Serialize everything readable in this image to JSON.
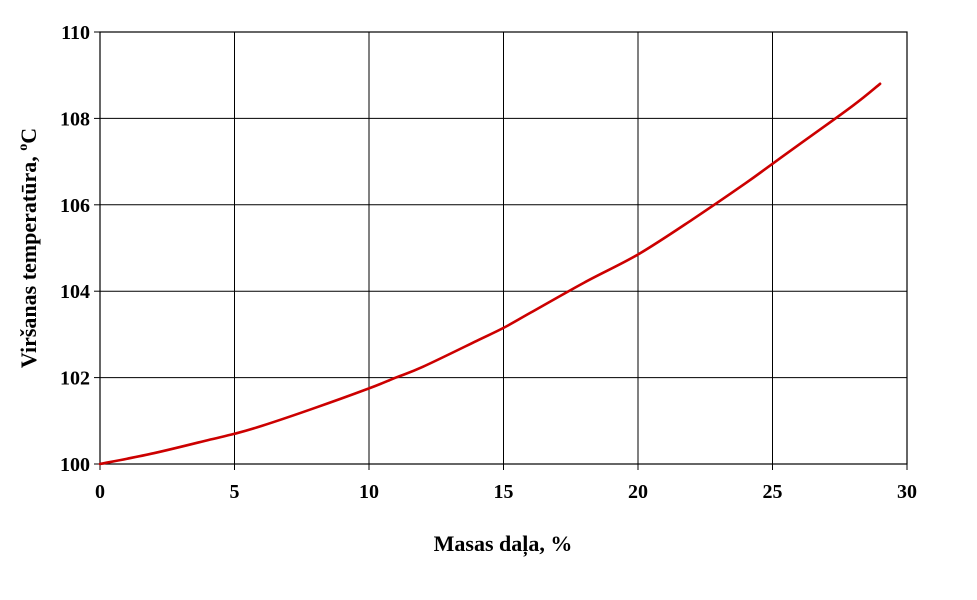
{
  "chart_data": {
    "type": "line",
    "title": "",
    "xlabel": "Masas daļa, %",
    "ylabel_main": "Viršanas temperatūra, ",
    "ylabel_sup": "o",
    "ylabel_unit": "C",
    "xlim": [
      0,
      30
    ],
    "ylim": [
      100,
      110
    ],
    "x_ticks": [
      0,
      5,
      10,
      15,
      20,
      25,
      30
    ],
    "y_ticks": [
      100,
      102,
      104,
      106,
      108,
      110
    ],
    "grid": true,
    "legend": "none",
    "series": [
      {
        "color": "#cc0000",
        "x": [
          0,
          2,
          4,
          5,
          6,
          8,
          10,
          11,
          12,
          14,
          15,
          16,
          18,
          20,
          22,
          24,
          25,
          26,
          28,
          29
        ],
        "y": [
          100.0,
          100.25,
          100.55,
          100.7,
          100.88,
          101.3,
          101.75,
          102.0,
          102.25,
          102.85,
          103.15,
          103.5,
          104.2,
          104.85,
          105.65,
          106.5,
          106.95,
          107.4,
          108.3,
          108.8
        ]
      }
    ]
  }
}
